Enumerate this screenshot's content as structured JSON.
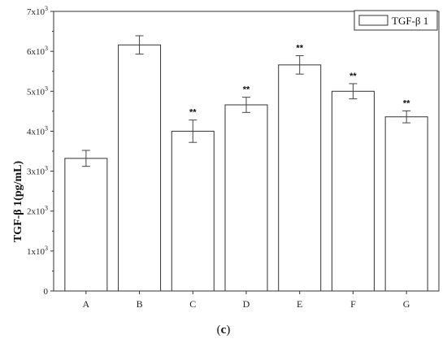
{
  "chart_data": {
    "type": "bar",
    "categories": [
      "A",
      "B",
      "C",
      "D",
      "E",
      "F",
      "G"
    ],
    "values": [
      3320,
      6160,
      4000,
      4660,
      5660,
      5000,
      4360
    ],
    "errors": [
      200,
      230,
      280,
      190,
      230,
      190,
      150
    ],
    "significance": [
      "",
      "",
      "**",
      "**",
      "**",
      "**",
      "**"
    ],
    "ylabel": "TGF-β 1(pg/mL)",
    "ylim": [
      0,
      7000
    ],
    "yticks": [
      {
        "value": 0,
        "label": "0"
      },
      {
        "value": 1000,
        "base": "1x10",
        "exp": "3"
      },
      {
        "value": 2000,
        "base": "2x10",
        "exp": "3"
      },
      {
        "value": 3000,
        "base": "3x10",
        "exp": "3"
      },
      {
        "value": 4000,
        "base": "4x10",
        "exp": "3"
      },
      {
        "value": 5000,
        "base": "5x10",
        "exp": "3"
      },
      {
        "value": 6000,
        "base": "6x10",
        "exp": "3"
      },
      {
        "value": 7000,
        "base": "7x10",
        "exp": "3"
      }
    ],
    "legend": {
      "entries": [
        "TGF-β 1"
      ],
      "position": "top-right"
    },
    "grid": false
  },
  "panel": {
    "open": "(",
    "letter": "c",
    "close": ")"
  }
}
